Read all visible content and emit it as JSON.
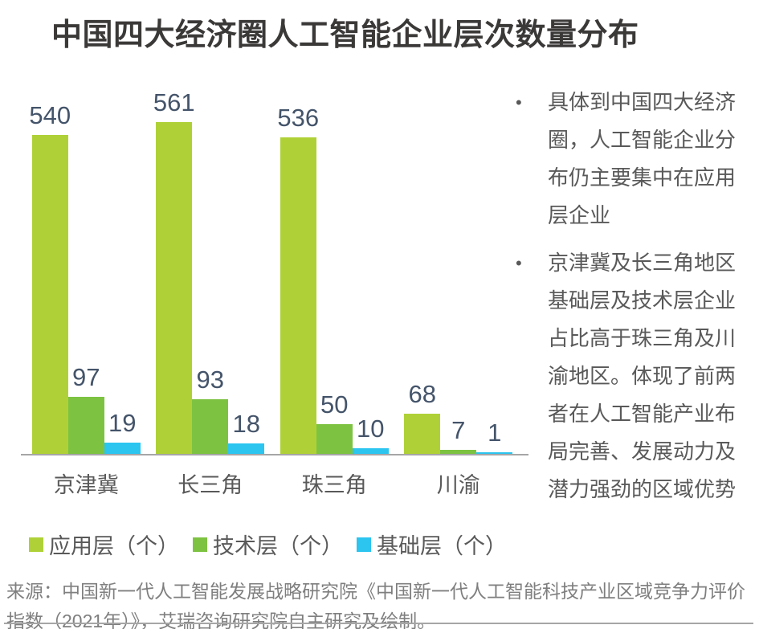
{
  "page": {
    "title": "中国四大经济圈人工智能企业层次数量分布",
    "source": "来源：中国新一代人工智能发展战略研究院《中国新一代人工智能科技产业区域竞争力评价指数（2021年）》，艾瑞咨询研究院自主研究及绘制。"
  },
  "notes": {
    "bullet_char": "•",
    "items": [
      "具体到中国四大经济圈，人工智能企业分布仍主要集中在应用层企业",
      "京津冀及长三角地区基础层及技术层企业占比高于珠三角及川渝地区。体现了前两者在人工智能产业布局完善、发展动力及潜力强劲的区域优势"
    ]
  },
  "chart_data": {
    "type": "bar",
    "title": "中国四大经济圈人工智能企业层次数量分布",
    "categories": [
      "京津冀",
      "长三角",
      "珠三角",
      "川渝"
    ],
    "series": [
      {
        "name": "应用层（个）",
        "color": "#AFD137",
        "values": [
          540,
          561,
          536,
          68
        ]
      },
      {
        "name": "技术层（个）",
        "color": "#7DC341",
        "values": [
          97,
          93,
          50,
          7
        ]
      },
      {
        "name": "基础层（个）",
        "color": "#2BC5F0",
        "values": [
          19,
          18,
          10,
          1
        ]
      }
    ],
    "value_labels": true,
    "grid": false,
    "legend_position": "bottom",
    "ylim": [
      0,
      600
    ],
    "colors": {
      "value_label": "#44546A",
      "axis_line": "#A6A6A6",
      "category_label": "#595959",
      "legend_label": "#595959",
      "notes_text": "#595959",
      "source_text": "#7F7F7F",
      "title_text": "#3B3838"
    }
  }
}
